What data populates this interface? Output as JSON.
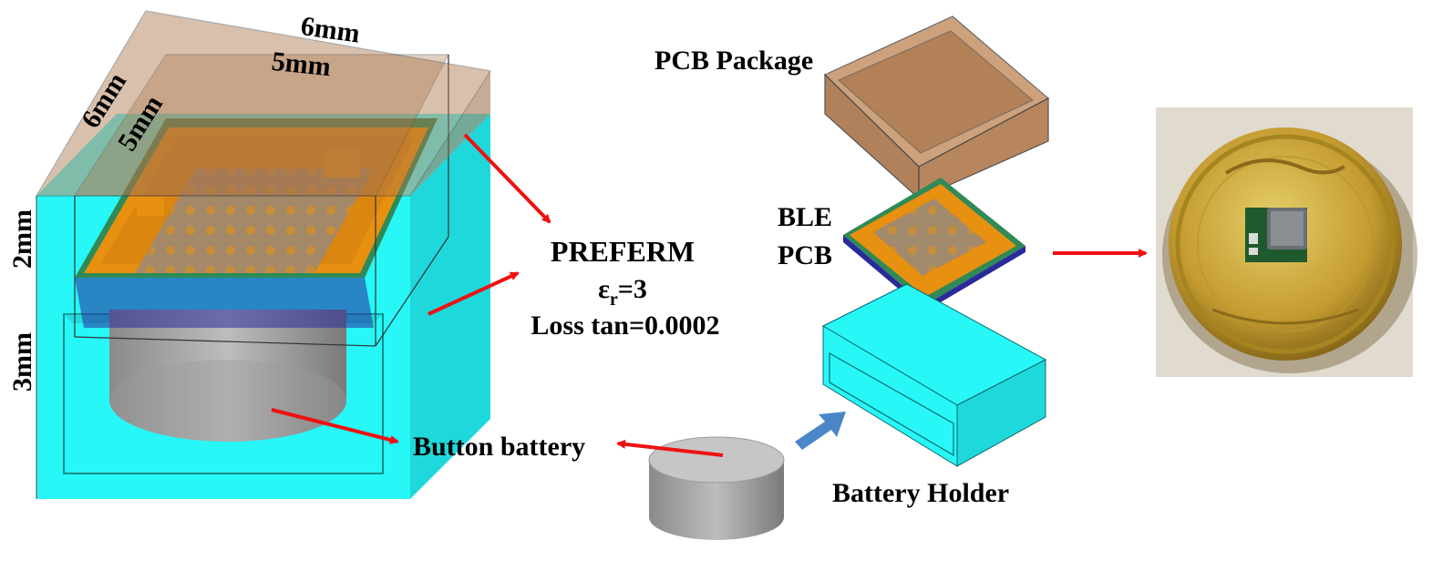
{
  "labels": {
    "dim_6mm_top": "6mm",
    "dim_5mm_top": "5mm",
    "dim_6mm_side": "6mm",
    "dim_5mm_side": "5mm",
    "dim_2mm": "2mm",
    "dim_3mm": "3mm",
    "preferm_title": "PREFERM",
    "epsilon_symbol": "ε",
    "epsilon_sub": "r",
    "epsilon_value": "=3",
    "loss_tan": "Loss tan=0.0002",
    "button_battery": "Button battery",
    "pcb_package": "PCB Package",
    "ble_line1": "BLE",
    "ble_line2": "PCB",
    "battery_holder": "Battery Holder"
  },
  "colors": {
    "package_brown": "#a9744a",
    "holder_cyan": "#27f7f7",
    "pcb_orange": "#e8900f",
    "pcb_green": "#2f8a57",
    "battery_grey": "#8f8f8f",
    "arrow_red": "#ee1111",
    "arrow_blue": "#4a86c8",
    "coin_gold": "#c9a93c"
  },
  "icons": {
    "photo": "coin-with-ble-module-photo"
  }
}
